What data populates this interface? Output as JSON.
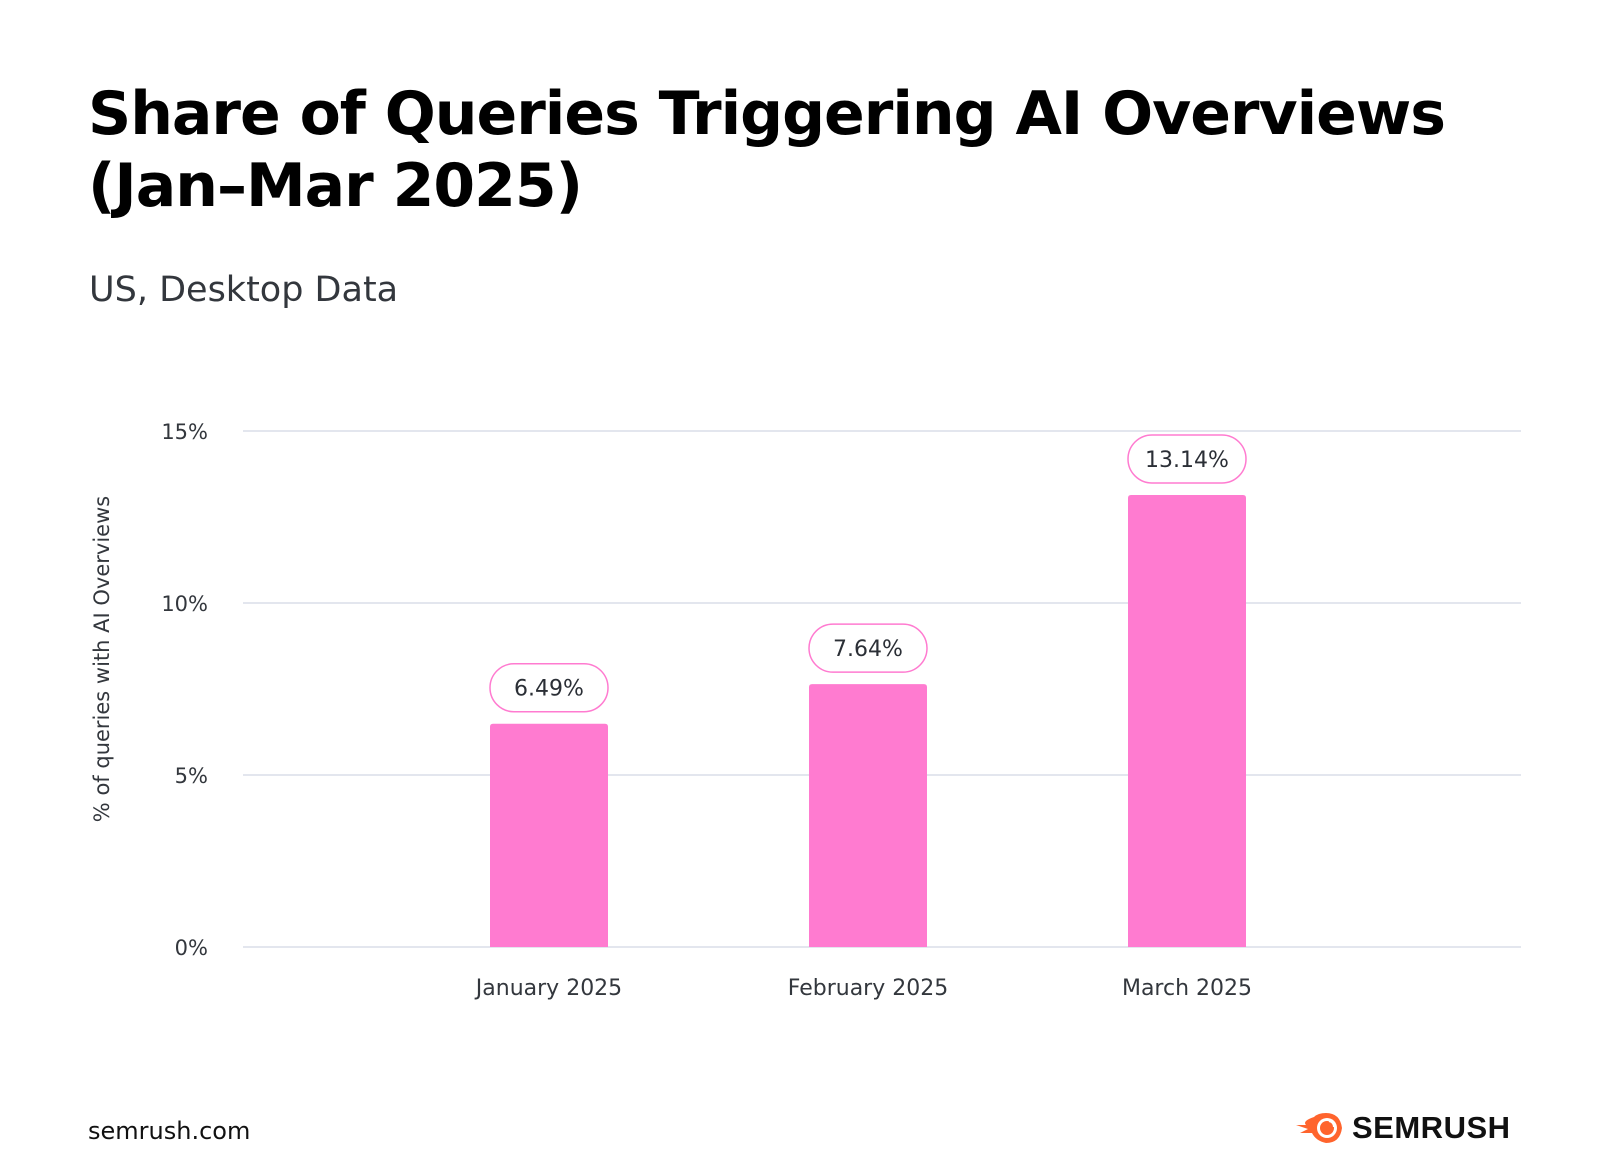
{
  "title_line1": "Share of Queries Triggering AI Overviews",
  "title_line2": "(Jan–Mar 2025)",
  "subtitle": "US, Desktop Data",
  "footer": {
    "source": "semrush.com",
    "brand": "SEMRUSH",
    "brand_color": "#FF642D"
  },
  "chart_data": {
    "type": "bar",
    "categories": [
      "January 2025",
      "February 2025",
      "March 2025"
    ],
    "values": [
      6.49,
      7.64,
      13.14
    ],
    "data_labels": [
      "6.49%",
      "7.64%",
      "13.14%"
    ],
    "ylabel": "% of queries with AI Overviews",
    "xlabel": "",
    "ylim": [
      0,
      15
    ],
    "yticks": [
      0,
      5,
      10,
      15
    ],
    "ytick_labels": [
      "0%",
      "5%",
      "10%",
      "15%"
    ],
    "grid": true,
    "bar_color": "#FF7BD0",
    "gridline_color": "#E3E6EE"
  }
}
